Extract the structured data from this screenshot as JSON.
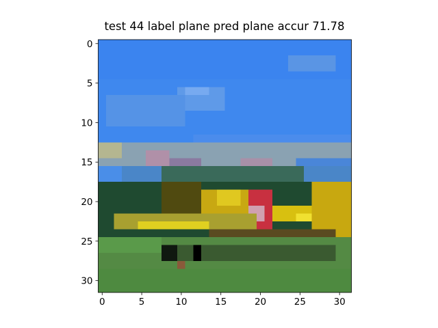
{
  "chart_data": {
    "type": "image",
    "title": "test 44 label plane pred plane accur 71.78",
    "xlim": [
      -0.5,
      31.5
    ],
    "ylim": [
      31.5,
      -0.5
    ],
    "xticks": [
      0,
      5,
      10,
      15,
      20,
      25,
      30
    ],
    "yticks": [
      0,
      5,
      10,
      15,
      20,
      25,
      30
    ]
  }
}
